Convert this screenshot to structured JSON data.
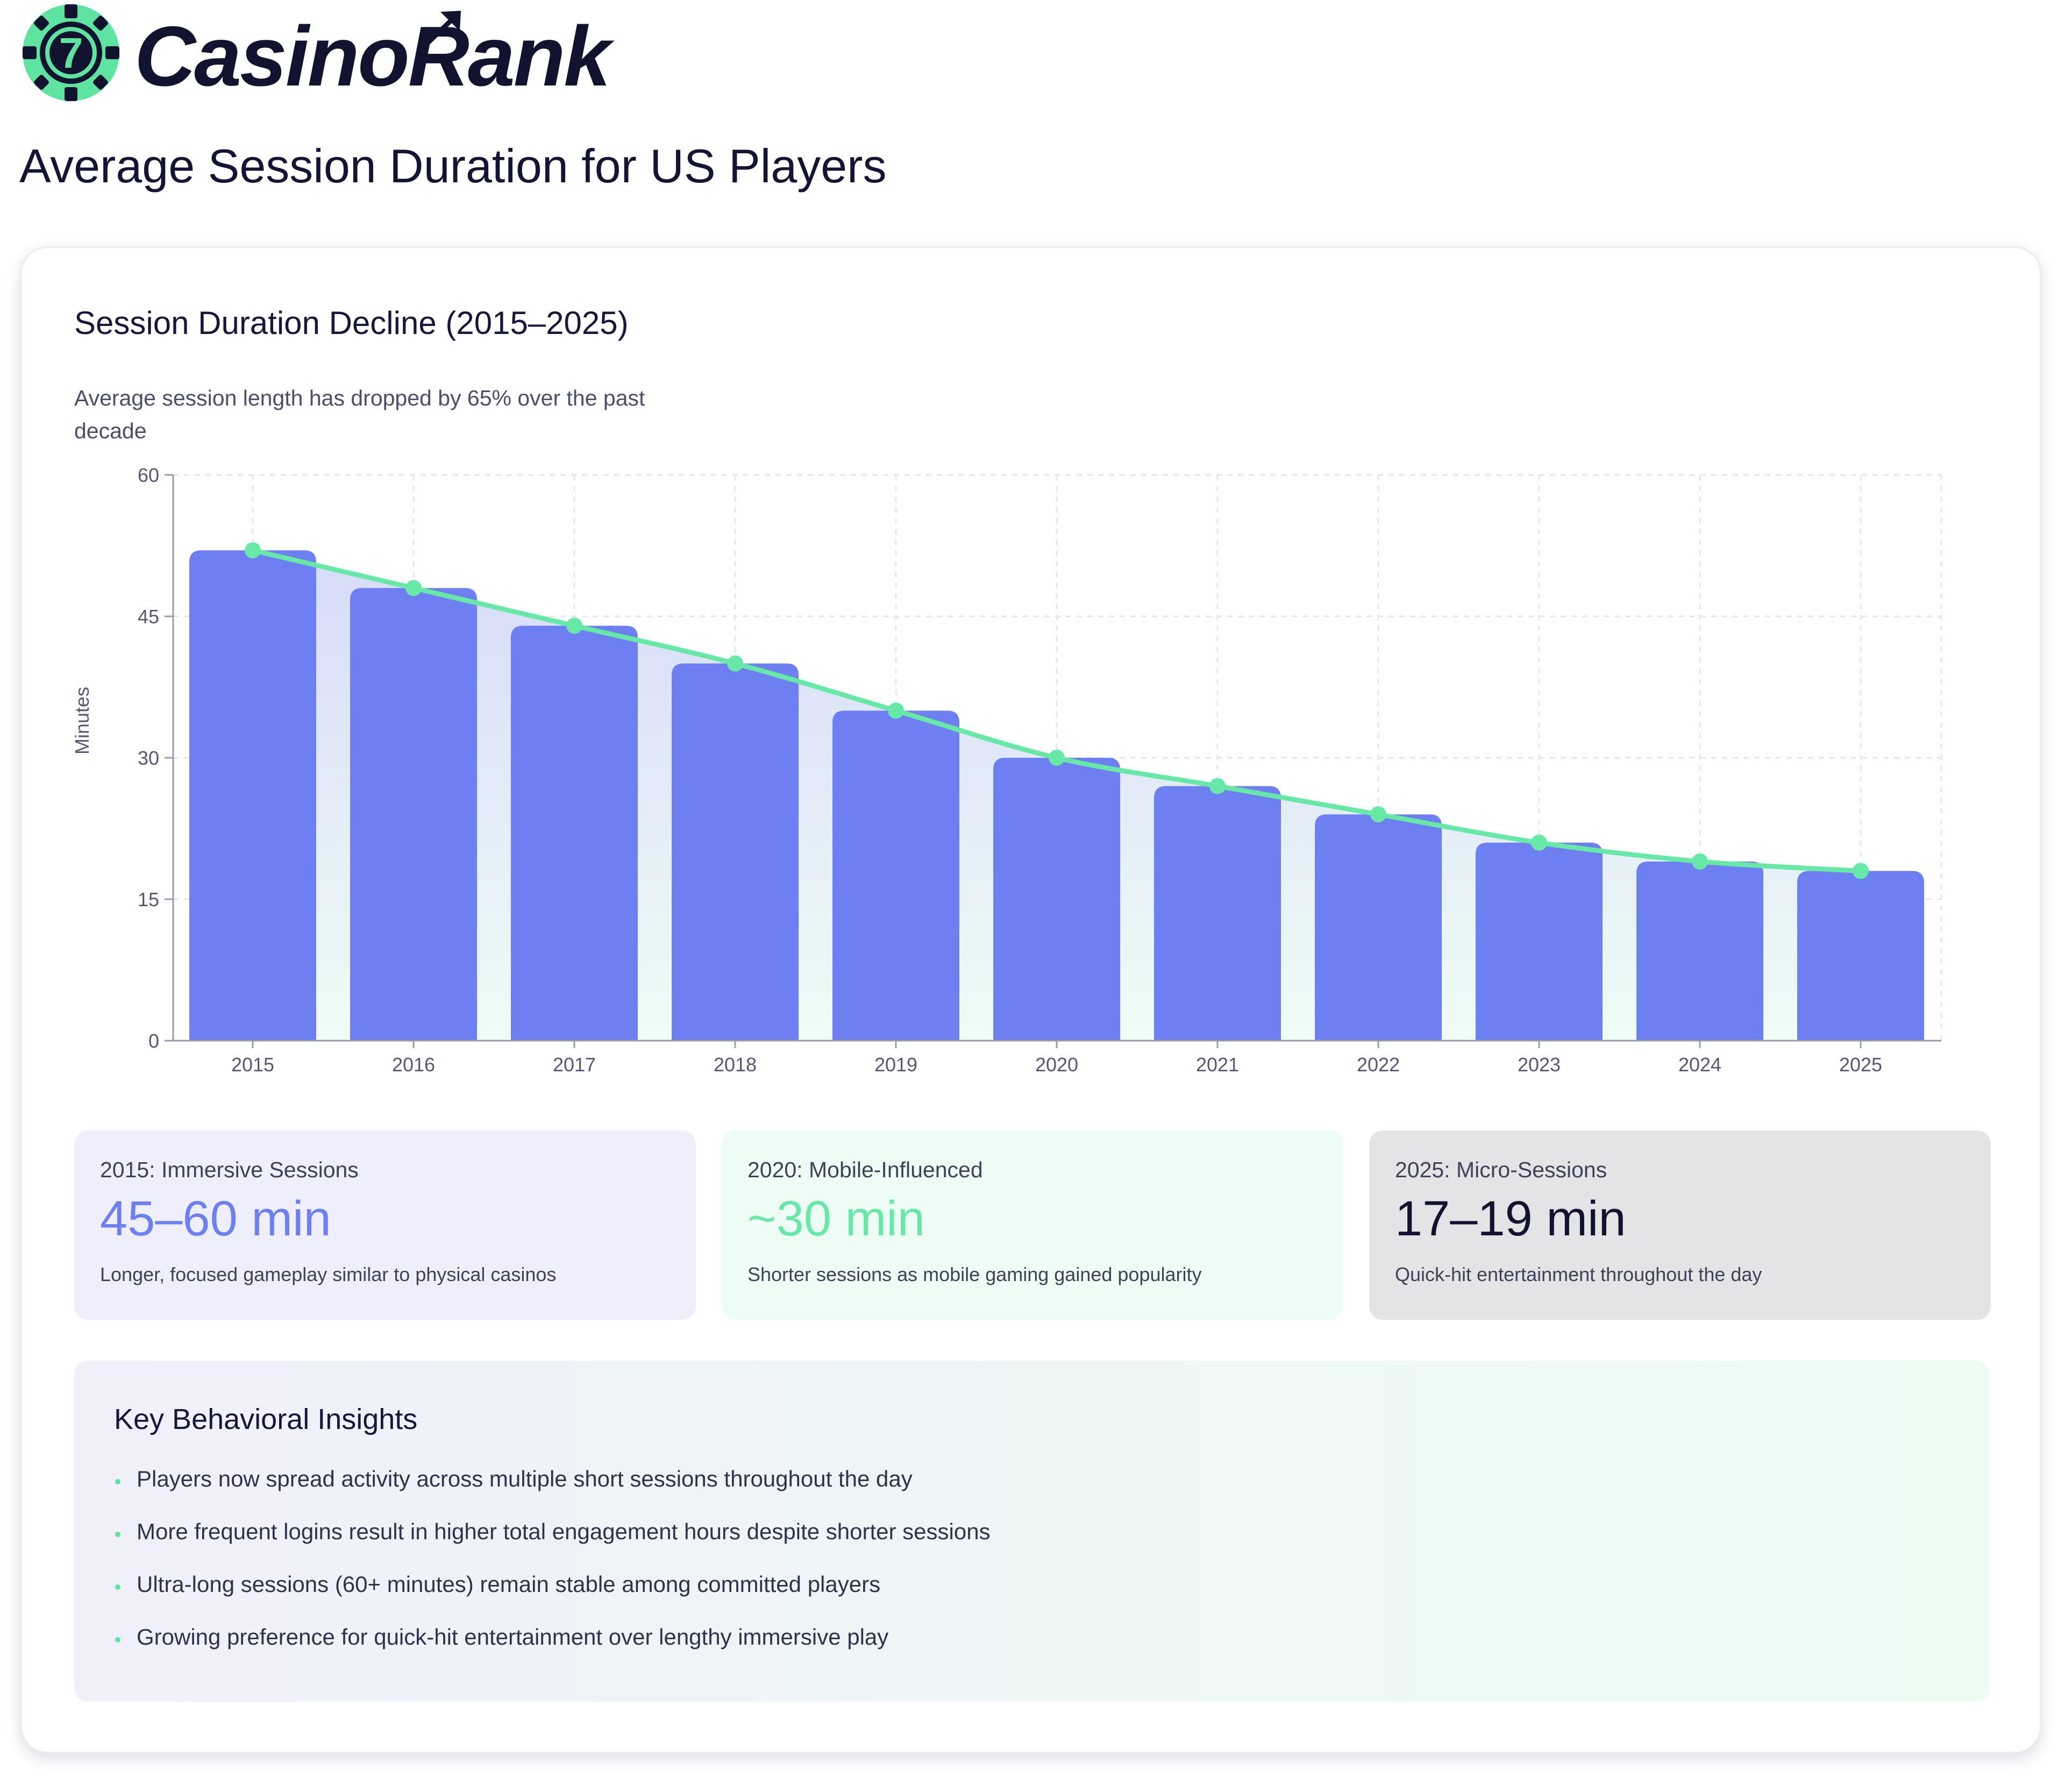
{
  "brand": {
    "name_main": "Casino",
    "name_accent": "Rank",
    "chip_number": "7"
  },
  "page_title": "Average Session Duration for US Players",
  "colors": {
    "bar": "#6e7ff2",
    "line": "#68e8a7",
    "text_dark": "#12132e",
    "stat1_bg": "#efeffb",
    "stat2_bg": "#edfcf5",
    "stat3_bg": "#e4e4e7"
  },
  "chart_data": {
    "type": "bar",
    "title": "Session Duration Decline (2015–2025)",
    "subtitle": "Average session length has dropped by 65% over the past decade",
    "ylabel": "Minutes",
    "xlabel": "",
    "ylim": [
      0,
      60
    ],
    "yticks": [
      0,
      15,
      30,
      45,
      60
    ],
    "grid": true,
    "legend": "none",
    "categories": [
      "2015",
      "2016",
      "2017",
      "2018",
      "2019",
      "2020",
      "2021",
      "2022",
      "2023",
      "2024",
      "2025"
    ],
    "series": [
      {
        "type": "bar",
        "values": [
          52,
          48,
          44,
          40,
          35,
          30,
          27,
          24,
          21,
          19,
          18
        ]
      },
      {
        "type": "line",
        "values": [
          52,
          48,
          44,
          40,
          35,
          30,
          27,
          24,
          21,
          19,
          18
        ]
      }
    ]
  },
  "stats": [
    {
      "label": "2015: Immersive Sessions",
      "value": "45–60 min",
      "desc": "Longer, focused gameplay similar to physical casinos"
    },
    {
      "label": "2020: Mobile-Influenced",
      "value": "~30 min",
      "desc": "Shorter sessions as mobile gaming gained popularity"
    },
    {
      "label": "2025: Micro-Sessions",
      "value": "17–19 min",
      "desc": "Quick-hit entertainment throughout the day"
    }
  ],
  "insights": {
    "title": "Key Behavioral Insights",
    "items": [
      "Players now spread activity across multiple short sessions throughout the day",
      "More frequent logins result in higher total engagement hours despite shorter sessions",
      "Ultra-long sessions (60+ minutes) remain stable among committed players",
      "Growing preference for quick-hit entertainment over lengthy immersive play"
    ]
  }
}
